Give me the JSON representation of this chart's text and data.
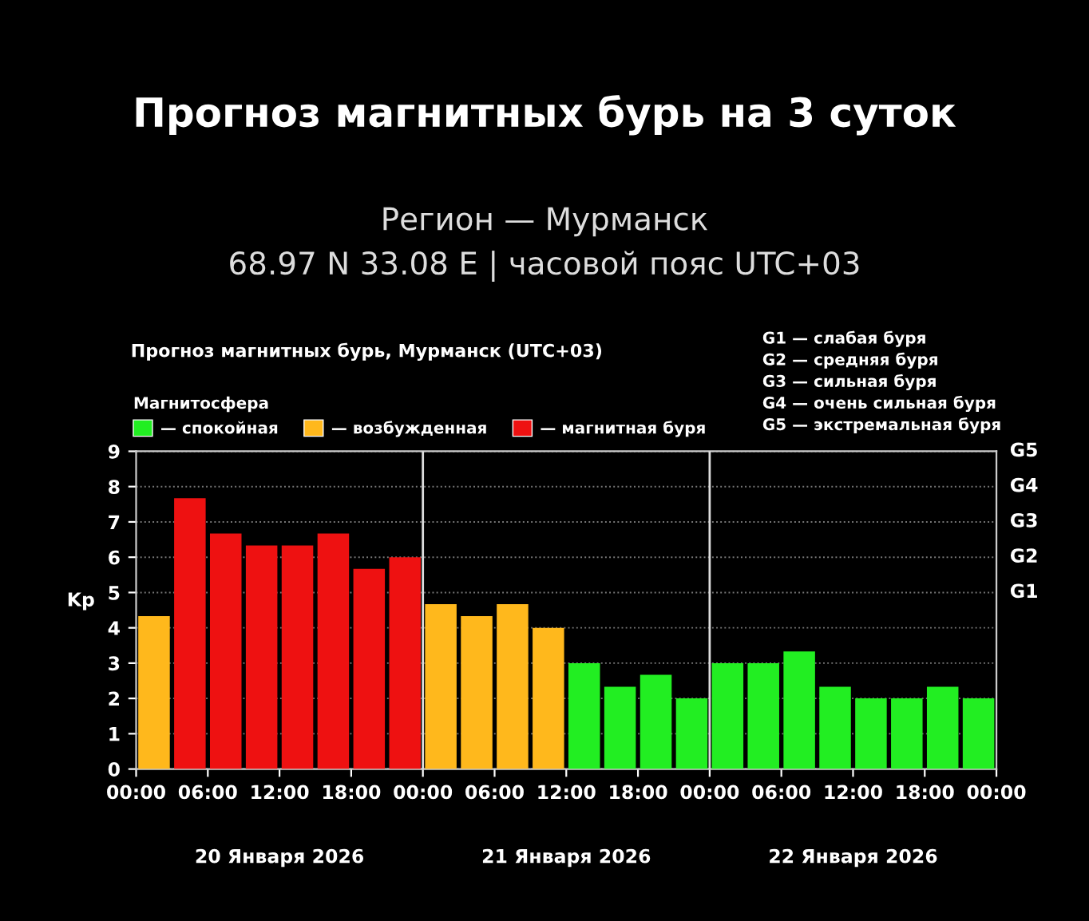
{
  "chart_data": {
    "type": "bar",
    "title": "Прогноз магнитных бурь на 3 суток",
    "subtitle": "Регион — Мурманск\n68.97 N 33.08 E | часовой пояс UTC+03",
    "ylabel": "Kp",
    "legend_title": "Магнитосфера",
    "annotations": [
      "Прогноз магнитных бурь, Мурманск (UTC+03)",
      "G1 — слабая буря",
      "G2 — средняя буря",
      "G3 — сильная буря",
      "G4 — очень сильная буря",
      "G5 — экстремальная буря",
      "20 Января 2026",
      "21 Января 2026",
      "22 Января 2026",
      "G1",
      "G2",
      "G3",
      "G4",
      "G5"
    ],
    "x": [
      "2026-01-20T01:30",
      "2026-01-20T04:30",
      "2026-01-20T07:30",
      "2026-01-20T10:30",
      "2026-01-20T13:30",
      "2026-01-20T16:30",
      "2026-01-20T19:30",
      "2026-01-20T22:30",
      "2026-01-21T01:30",
      "2026-01-21T04:30",
      "2026-01-21T07:30",
      "2026-01-21T10:30",
      "2026-01-21T13:30",
      "2026-01-21T16:30",
      "2026-01-21T19:30",
      "2026-01-21T22:30",
      "2026-01-22T01:30",
      "2026-01-22T04:30",
      "2026-01-22T07:30",
      "2026-01-22T10:30",
      "2026-01-22T13:30",
      "2026-01-22T16:30",
      "2026-01-22T19:30",
      "2026-01-22T22:30"
    ],
    "series": [
      {
        "name": "— спокойная",
        "color": "#22ee22",
        "values": [
          null,
          null,
          null,
          null,
          null,
          null,
          null,
          null,
          null,
          null,
          null,
          null,
          3.0,
          2.33,
          2.67,
          2.0,
          3.0,
          3.0,
          3.33,
          2.33,
          2.0,
          2.0,
          2.33,
          2.0
        ]
      },
      {
        "name": "— возбужденная",
        "color": "#ffb81c",
        "values": [
          4.33,
          null,
          null,
          null,
          null,
          null,
          null,
          null,
          4.67,
          4.33,
          4.67,
          4.0,
          null,
          null,
          null,
          null,
          null,
          null,
          null,
          null,
          null,
          null,
          null,
          null
        ]
      },
      {
        "name": "— магнитная буря",
        "color": "#ee1111",
        "values": [
          null,
          7.67,
          6.67,
          6.33,
          6.33,
          6.67,
          5.67,
          6.0,
          null,
          null,
          null,
          null,
          null,
          null,
          null,
          null,
          null,
          null,
          null,
          null,
          null,
          null,
          null,
          null
        ]
      }
    ],
    "xlim": [
      "2026-01-20T00:00",
      "2026-01-23T00:00"
    ],
    "xticks": [
      {
        "value": "2026-01-20T00:00",
        "label": "00:00"
      },
      {
        "value": "2026-01-20T06:00",
        "label": "06:00"
      },
      {
        "value": "2026-01-20T12:00",
        "label": "12:00"
      },
      {
        "value": "2026-01-20T18:00",
        "label": "18:00"
      },
      {
        "value": "2026-01-21T00:00",
        "label": "00:00"
      },
      {
        "value": "2026-01-21T06:00",
        "label": "06:00"
      },
      {
        "value": "2026-01-21T12:00",
        "label": "12:00"
      },
      {
        "value": "2026-01-21T18:00",
        "label": "18:00"
      },
      {
        "value": "2026-01-22T00:00",
        "label": "00:00"
      },
      {
        "value": "2026-01-22T06:00",
        "label": "06:00"
      },
      {
        "value": "2026-01-22T12:00",
        "label": "12:00"
      },
      {
        "value": "2026-01-22T18:00",
        "label": "18:00"
      },
      {
        "value": "2026-01-23T00:00",
        "label": "00:00"
      }
    ],
    "ylim": [
      0,
      9
    ],
    "yticks": [
      0,
      1,
      2,
      3,
      4,
      5,
      6,
      7,
      8,
      9
    ],
    "ref_lines": [
      {
        "axis": "x",
        "value": "2026-01-21T00:00",
        "color": "#dddddd"
      },
      {
        "axis": "x",
        "value": "2026-01-22T00:00",
        "color": "#dddddd"
      }
    ],
    "grid": "y",
    "legend": "top"
  }
}
